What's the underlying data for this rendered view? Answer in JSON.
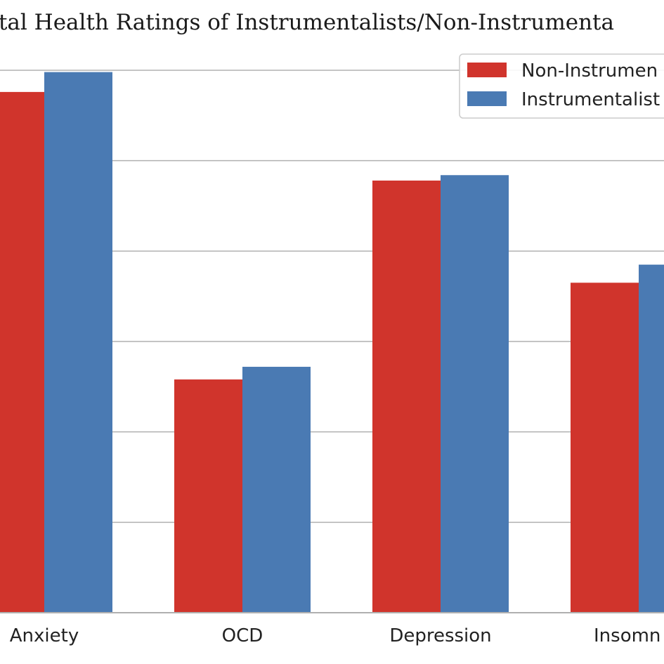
{
  "chart_data": {
    "type": "bar",
    "title": "Mental Health Ratings of Instrumentalists/Non-Instrumentalists",
    "visible_title": "ntal Health Ratings of Instrumentalists/Non-Instrumenta",
    "categories": [
      "Anxiety",
      "OCD",
      "Depression",
      "Insomnia"
    ],
    "visible_categories": [
      "Anxiety",
      "OCD",
      "Depression",
      "Insomn"
    ],
    "series": [
      {
        "name": "Non-Instrumentalists",
        "visible_name": "Non-Instrumen",
        "color": "#d0342c",
        "values": [
          5.76,
          2.58,
          4.78,
          3.65
        ]
      },
      {
        "name": "Instrumentalists",
        "visible_name": "Instrumentalist",
        "color": "#4a7ab3",
        "values": [
          5.98,
          2.72,
          4.84,
          3.85
        ]
      }
    ],
    "ylim": [
      0,
      6
    ],
    "grid": true,
    "legend_position": "top-right"
  }
}
